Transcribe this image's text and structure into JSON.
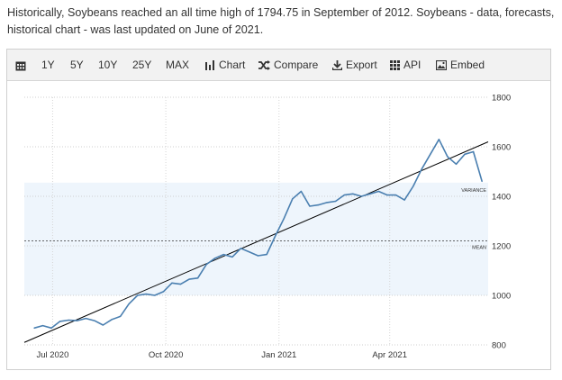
{
  "intro": {
    "text": "Historically, Soybeans reached an all time high of 1794.75 in September of 2012. Soybeans - data, forecasts, historical chart - was last updated on June of 2021."
  },
  "toolbar": {
    "calendar_icon": "calendar-icon",
    "ranges": [
      "1Y",
      "5Y",
      "10Y",
      "25Y",
      "MAX"
    ],
    "chart_label": "Chart",
    "compare_label": "Compare",
    "export_label": "Export",
    "api_label": "API",
    "embed_label": "Embed"
  },
  "colors": {
    "line": "#4a7fb0",
    "band": "#eef5fc",
    "trend": "#000000"
  },
  "chart_data": {
    "type": "line",
    "x_ticks": [
      "Jul 2020",
      "Oct 2020",
      "Jan 2021",
      "Apr 2021"
    ],
    "y_ticks": [
      800,
      1000,
      1200,
      1400,
      1600,
      1800
    ],
    "ylim": [
      800,
      1800
    ],
    "annotations": [
      {
        "label": "VARIANCE",
        "value": 1455
      },
      {
        "label": "MEAN",
        "value": 1220
      }
    ],
    "band": [
      1000,
      1455
    ],
    "mean_line": 1220,
    "trendline": [
      [
        0,
        810
      ],
      [
        1,
        1620
      ]
    ],
    "x": [
      "2020-06-16",
      "2020-06-23",
      "2020-06-30",
      "2020-07-07",
      "2020-07-14",
      "2020-07-21",
      "2020-07-28",
      "2020-08-04",
      "2020-08-11",
      "2020-08-18",
      "2020-08-25",
      "2020-09-01",
      "2020-09-08",
      "2020-09-15",
      "2020-09-22",
      "2020-09-29",
      "2020-10-06",
      "2020-10-13",
      "2020-10-20",
      "2020-10-27",
      "2020-11-03",
      "2020-11-10",
      "2020-11-17",
      "2020-11-24",
      "2020-12-01",
      "2020-12-08",
      "2020-12-15",
      "2020-12-22",
      "2020-12-29",
      "2021-01-05",
      "2021-01-12",
      "2021-01-19",
      "2021-01-26",
      "2021-02-02",
      "2021-02-09",
      "2021-02-16",
      "2021-02-23",
      "2021-03-02",
      "2021-03-09",
      "2021-03-16",
      "2021-03-23",
      "2021-03-30",
      "2021-04-06",
      "2021-04-13",
      "2021-04-20",
      "2021-04-27",
      "2021-05-04",
      "2021-05-11",
      "2021-05-18",
      "2021-05-25",
      "2021-06-01",
      "2021-06-08",
      "2021-06-15"
    ],
    "series": [
      {
        "values": [
          868,
          878,
          868,
          895,
          900,
          898,
          907,
          898,
          880,
          902,
          915,
          965,
          1000,
          1005,
          1000,
          1015,
          1050,
          1045,
          1065,
          1070,
          1125,
          1150,
          1165,
          1155,
          1190,
          1175,
          1160,
          1165,
          1240,
          1310,
          1390,
          1420,
          1360,
          1365,
          1375,
          1380,
          1405,
          1410,
          1400,
          1410,
          1420,
          1405,
          1405,
          1385,
          1440,
          1510,
          1570,
          1630,
          1560,
          1530,
          1570,
          1580,
          1460
        ]
      }
    ]
  }
}
